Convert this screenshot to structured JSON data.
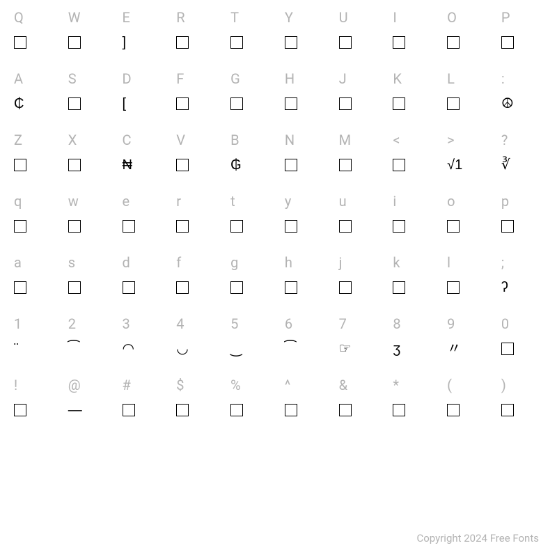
{
  "background_color": "#ffffff",
  "label_color": "#b3b3b3",
  "glyph_color": "#000000",
  "box_border_color": "#000000",
  "label_fontsize": 20,
  "glyph_fontsize": 20,
  "copyright_fontsize": 15,
  "rows": [
    {
      "cells": [
        {
          "label": "Q",
          "glyph": null
        },
        {
          "label": "W",
          "glyph": null
        },
        {
          "label": "E",
          "glyph": "]"
        },
        {
          "label": "R",
          "glyph": null
        },
        {
          "label": "T",
          "glyph": null
        },
        {
          "label": "Y",
          "glyph": null
        },
        {
          "label": "U",
          "glyph": null
        },
        {
          "label": "I",
          "glyph": null
        },
        {
          "label": "O",
          "glyph": null
        },
        {
          "label": "P",
          "glyph": null
        }
      ]
    },
    {
      "cells": [
        {
          "label": "A",
          "glyph": "₵"
        },
        {
          "label": "S",
          "glyph": null
        },
        {
          "label": "D",
          "glyph": "["
        },
        {
          "label": "F",
          "glyph": null
        },
        {
          "label": "G",
          "glyph": null
        },
        {
          "label": "H",
          "glyph": null
        },
        {
          "label": "J",
          "glyph": null
        },
        {
          "label": "K",
          "glyph": null
        },
        {
          "label": "L",
          "glyph": null
        },
        {
          "label": ":",
          "glyph": "☮"
        }
      ]
    },
    {
      "cells": [
        {
          "label": "Z",
          "glyph": null
        },
        {
          "label": "X",
          "glyph": null
        },
        {
          "label": "C",
          "glyph": "₦"
        },
        {
          "label": "V",
          "glyph": null
        },
        {
          "label": "B",
          "glyph": "₲"
        },
        {
          "label": "N",
          "glyph": null
        },
        {
          "label": "M",
          "glyph": null
        },
        {
          "label": "<",
          "glyph": null
        },
        {
          "label": ">",
          "glyph": "√1"
        },
        {
          "label": "?",
          "glyph": "∛"
        }
      ]
    },
    {
      "cells": [
        {
          "label": "q",
          "glyph": null
        },
        {
          "label": "w",
          "glyph": null
        },
        {
          "label": "e",
          "glyph": null
        },
        {
          "label": "r",
          "glyph": null
        },
        {
          "label": "t",
          "glyph": null
        },
        {
          "label": "y",
          "glyph": null
        },
        {
          "label": "u",
          "glyph": null
        },
        {
          "label": "i",
          "glyph": null
        },
        {
          "label": "o",
          "glyph": null
        },
        {
          "label": "p",
          "glyph": null
        }
      ]
    },
    {
      "cells": [
        {
          "label": "a",
          "glyph": null
        },
        {
          "label": "s",
          "glyph": null
        },
        {
          "label": "d",
          "glyph": null
        },
        {
          "label": "f",
          "glyph": null
        },
        {
          "label": "g",
          "glyph": null
        },
        {
          "label": "h",
          "glyph": null
        },
        {
          "label": "j",
          "glyph": null
        },
        {
          "label": "k",
          "glyph": null
        },
        {
          "label": "l",
          "glyph": null
        },
        {
          "label": ";",
          "glyph": "ʔ"
        }
      ]
    },
    {
      "cells": [
        {
          "label": "1",
          "glyph": "¨"
        },
        {
          "label": "2",
          "glyph": "⁀"
        },
        {
          "label": "3",
          "glyph": "◠"
        },
        {
          "label": "4",
          "glyph": "◡"
        },
        {
          "label": "5",
          "glyph": "‿"
        },
        {
          "label": "6",
          "glyph": "⁀"
        },
        {
          "label": "7",
          "glyph": "☞"
        },
        {
          "label": "8",
          "glyph": "ʒ"
        },
        {
          "label": "9",
          "glyph": "〃"
        },
        {
          "label": "0",
          "glyph": null
        }
      ]
    },
    {
      "cells": [
        {
          "label": "!",
          "glyph": null
        },
        {
          "label": "@",
          "glyph": "—"
        },
        {
          "label": "#",
          "glyph": null
        },
        {
          "label": "$",
          "glyph": null
        },
        {
          "label": "%",
          "glyph": null
        },
        {
          "label": "^",
          "glyph": null
        },
        {
          "label": "&",
          "glyph": null
        },
        {
          "label": "*",
          "glyph": null
        },
        {
          "label": "(",
          "glyph": null
        },
        {
          "label": ")",
          "glyph": null
        }
      ]
    }
  ],
  "copyright": "Copyright 2024 Free Fonts"
}
